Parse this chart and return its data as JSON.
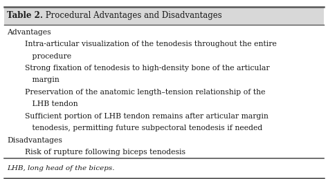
{
  "title_bold": "Table 2.",
  "title_normal": " Procedural Advantages and Disadvantages",
  "background_color": "#ffffff",
  "border_color": "#555555",
  "text_color": "#1a1a1a",
  "title_bg": "#d8d8d8",
  "lines": [
    {
      "text": "Advantages",
      "indent": 0,
      "bold": false
    },
    {
      "text": "Intra-articular visualization of the tenodesis throughout the entire",
      "indent": 1,
      "bold": false
    },
    {
      "text": "   procedure",
      "indent": 1,
      "bold": false
    },
    {
      "text": "Strong fixation of tenodesis to high-density bone of the articular",
      "indent": 1,
      "bold": false
    },
    {
      "text": "   margin",
      "indent": 1,
      "bold": false
    },
    {
      "text": "Preservation of the anatomic length–tension relationship of the",
      "indent": 1,
      "bold": false
    },
    {
      "text": "   LHB tendon",
      "indent": 1,
      "bold": false
    },
    {
      "text": "Sufficient portion of LHB tendon remains after articular margin",
      "indent": 1,
      "bold": false
    },
    {
      "text": "   tenodesis, permitting future subpectoral tenodesis if needed",
      "indent": 1,
      "bold": false
    },
    {
      "text": "Disadvantages",
      "indent": 0,
      "bold": false
    },
    {
      "text": "Risk of rupture following biceps tenodesis",
      "indent": 1,
      "bold": false
    }
  ],
  "footnote": "LHB, long head of the biceps.",
  "font_size": 7.8,
  "title_font_size": 8.5,
  "footnote_font_size": 7.5,
  "figwidth": 4.74,
  "figheight": 2.6,
  "dpi": 100
}
